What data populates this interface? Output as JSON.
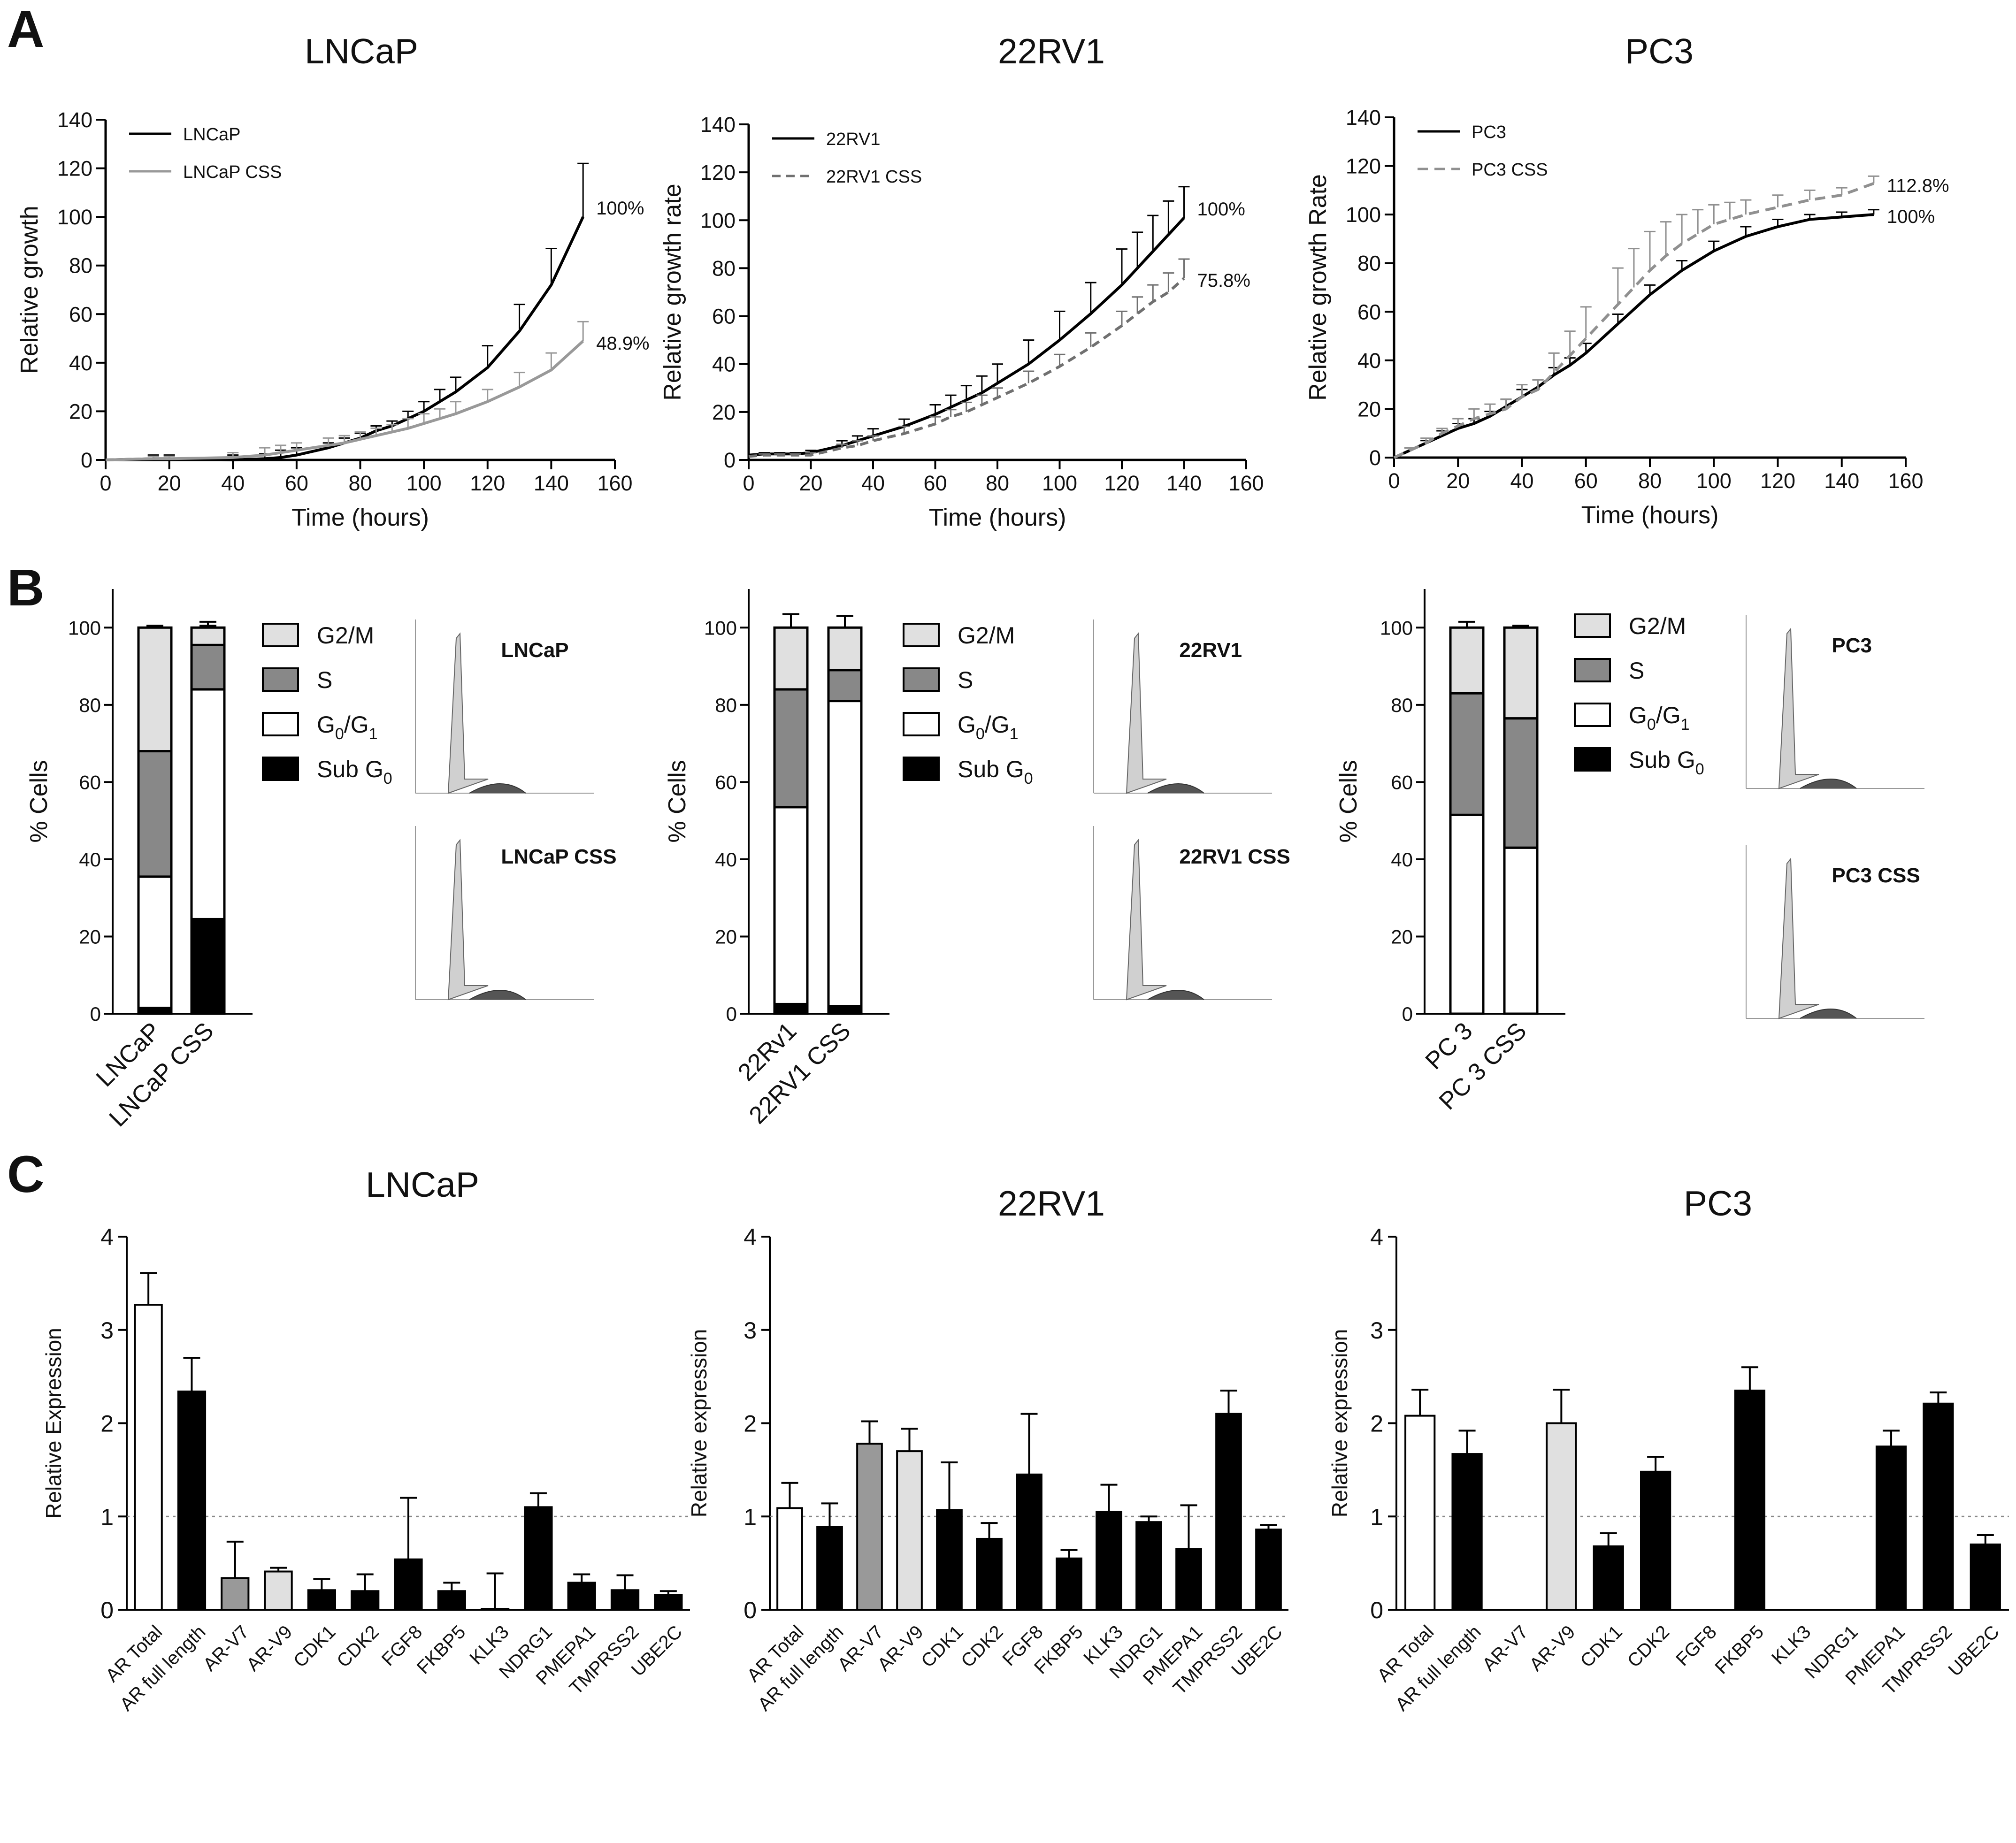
{
  "panel_labels": [
    "A",
    "B",
    "C"
  ],
  "chart_data": [
    {
      "id": "A1",
      "type": "line",
      "title": "LNCaP",
      "xlabel": "Time (hours)",
      "ylabel": "Relative growth",
      "xlim": [
        0,
        160
      ],
      "ylim": [
        0,
        140
      ],
      "xticks": [
        0,
        20,
        40,
        60,
        80,
        100,
        120,
        140,
        160
      ],
      "yticks": [
        0,
        20,
        40,
        60,
        80,
        100,
        120,
        140
      ],
      "series": [
        {
          "name": "LNCaP",
          "color": "#000000",
          "dash": "",
          "x": [
            0,
            15,
            20,
            40,
            50,
            55,
            60,
            70,
            75,
            80,
            85,
            90,
            95,
            100,
            105,
            110,
            120,
            130,
            140,
            150
          ],
          "y": [
            0,
            0.5,
            0.5,
            0,
            0.5,
            1,
            2,
            5,
            7,
            9,
            12,
            14,
            17,
            20,
            24,
            28,
            38,
            53,
            72,
            100
          ],
          "err": [
            0,
            1.5,
            1.5,
            2,
            2,
            3,
            3,
            2,
            2,
            2,
            2,
            2,
            3,
            4,
            5,
            6,
            9,
            11,
            15,
            22
          ],
          "end_label": "100%"
        },
        {
          "name": "LNCaP CSS",
          "color": "#999999",
          "dash": "",
          "x": [
            0,
            15,
            20,
            40,
            50,
            55,
            60,
            70,
            75,
            80,
            85,
            90,
            95,
            100,
            105,
            110,
            120,
            130,
            140,
            150
          ],
          "y": [
            0,
            0.5,
            0.5,
            1,
            2,
            3,
            4,
            6,
            7,
            8.5,
            10,
            11.5,
            13,
            15,
            17,
            19,
            24,
            30,
            37,
            48.9
          ],
          "err": [
            0,
            1,
            1,
            2,
            3,
            3,
            3,
            3,
            3,
            3,
            3,
            3,
            4,
            4,
            4,
            5,
            5,
            6,
            7,
            8
          ],
          "end_label": "48.9%"
        }
      ]
    },
    {
      "id": "A2",
      "type": "line",
      "title": "22RV1",
      "xlabel": "Time (hours)",
      "ylabel": "Relative growth rate",
      "xlim": [
        0,
        160
      ],
      "ylim": [
        0,
        140
      ],
      "xticks": [
        0,
        20,
        40,
        60,
        80,
        100,
        120,
        140,
        160
      ],
      "yticks": [
        0,
        20,
        40,
        60,
        80,
        100,
        120,
        140
      ],
      "series": [
        {
          "name": "22RV1",
          "color": "#000000",
          "dash": "",
          "x": [
            0,
            5,
            10,
            15,
            20,
            30,
            35,
            40,
            50,
            60,
            65,
            70,
            75,
            80,
            90,
            100,
            110,
            120,
            125,
            130,
            135,
            140
          ],
          "y": [
            2,
            2.5,
            2.5,
            2.5,
            3,
            6,
            8,
            10,
            14,
            19,
            22,
            25,
            28,
            32,
            40,
            50,
            61,
            73,
            80,
            87,
            94,
            101
          ],
          "err": [
            0,
            0.5,
            0.5,
            0.5,
            1,
            2,
            2,
            3,
            3,
            4,
            5,
            6,
            7,
            8,
            10,
            12,
            13,
            15,
            15,
            15,
            14,
            13
          ],
          "end_label": "100%"
        },
        {
          "name": "22RV1 CSS",
          "color": "#707070",
          "dash": "18,12",
          "x": [
            0,
            5,
            10,
            15,
            20,
            30,
            35,
            40,
            50,
            60,
            65,
            70,
            75,
            80,
            90,
            100,
            110,
            120,
            125,
            130,
            135,
            140
          ],
          "y": [
            1.5,
            2,
            2,
            2,
            2,
            5,
            6,
            8,
            11,
            15,
            18,
            20,
            23,
            26,
            32,
            39,
            47,
            56,
            61,
            66,
            70,
            75.8
          ],
          "err": [
            0,
            0.5,
            0.5,
            0.5,
            1,
            1.5,
            2,
            2,
            3,
            3,
            3,
            4,
            4,
            4,
            5,
            5,
            6,
            6,
            7,
            7,
            8,
            8
          ],
          "end_label": "75.8%"
        }
      ]
    },
    {
      "id": "A3",
      "type": "line",
      "title": "PC3",
      "xlabel": "Time (hours)",
      "ylabel": "Relative growth Rate",
      "xlim": [
        0,
        160
      ],
      "ylim": [
        0,
        140
      ],
      "xticks": [
        0,
        20,
        40,
        60,
        80,
        100,
        120,
        140,
        160
      ],
      "yticks": [
        0,
        20,
        40,
        60,
        80,
        100,
        120,
        140
      ],
      "series": [
        {
          "name": "PC3",
          "color": "#000000",
          "dash": "",
          "x": [
            0,
            5,
            10,
            15,
            20,
            25,
            30,
            35,
            40,
            45,
            50,
            55,
            60,
            70,
            80,
            90,
            100,
            110,
            120,
            130,
            140,
            150
          ],
          "y": [
            0,
            3,
            6,
            9,
            12,
            14,
            17,
            21,
            25,
            29,
            34,
            38,
            43,
            55,
            67,
            77,
            85,
            91,
            95,
            98,
            99,
            100
          ],
          "err": [
            0,
            1,
            1,
            2,
            2,
            2,
            2,
            3,
            3,
            3,
            3,
            3,
            4,
            4,
            4,
            4,
            4,
            4,
            3,
            2,
            2,
            2
          ],
          "end_label": "100%"
        },
        {
          "name": "PC3 CSS",
          "color": "#909090",
          "dash": "22,14",
          "x": [
            0,
            5,
            10,
            15,
            20,
            25,
            30,
            35,
            40,
            45,
            50,
            55,
            60,
            70,
            75,
            80,
            85,
            90,
            95,
            100,
            105,
            110,
            120,
            130,
            140,
            150
          ],
          "y": [
            0,
            3,
            6,
            10,
            13,
            16,
            18,
            20,
            25,
            28,
            35,
            42,
            49,
            63,
            70,
            77,
            83,
            88,
            92,
            96,
            98,
            100,
            103,
            106,
            108,
            112.8
          ],
          "err": [
            0,
            1,
            2,
            2,
            3,
            4,
            4,
            4,
            5,
            4,
            8,
            10,
            13,
            15,
            16,
            16,
            14,
            12,
            10,
            8,
            7,
            6,
            5,
            4,
            3,
            3
          ],
          "end_label": "112.8%"
        }
      ]
    },
    {
      "id": "B1",
      "type": "bar",
      "stacked": true,
      "ylabel": "% Cells",
      "ylim": [
        0,
        110
      ],
      "yticks": [
        0,
        20,
        40,
        60,
        80,
        100
      ],
      "categories": [
        "LNCaP",
        "LNCaP CSS"
      ],
      "series": [
        {
          "name": "Sub G0",
          "color": "#000000",
          "values": [
            1.5,
            24.5
          ],
          "err": [
            1,
            5
          ]
        },
        {
          "name": "G0/G1",
          "color": "#ffffff",
          "values": [
            34,
            59.5
          ],
          "err": [
            7,
            0
          ]
        },
        {
          "name": "S",
          "color": "#888888",
          "values": [
            32.5,
            11.5
          ],
          "err": [
            7,
            5
          ]
        },
        {
          "name": "G2/M",
          "color": "#e0e0e0",
          "values": [
            32,
            4.5
          ],
          "err": [
            0.5,
            1.5
          ]
        }
      ],
      "legend": [
        "G2/M",
        "S",
        "G0/G1",
        "Sub G0"
      ],
      "histograms": [
        "LNCaP",
        "LNCaP CSS"
      ]
    },
    {
      "id": "B2",
      "type": "bar",
      "stacked": true,
      "ylabel": "% Cells",
      "ylim": [
        0,
        110
      ],
      "yticks": [
        0,
        20,
        40,
        60,
        80,
        100
      ],
      "categories": [
        "22Rv1",
        "22RV1 CSS"
      ],
      "series": [
        {
          "name": "Sub G0",
          "color": "#000000",
          "values": [
            2.5,
            2
          ],
          "err": [
            1,
            1
          ]
        },
        {
          "name": "G0/G1",
          "color": "#ffffff",
          "values": [
            51,
            79
          ],
          "err": [
            5,
            4
          ]
        },
        {
          "name": "S",
          "color": "#888888",
          "values": [
            30.5,
            8
          ],
          "err": [
            1,
            7
          ]
        },
        {
          "name": "G2/M",
          "color": "#e0e0e0",
          "values": [
            16,
            11
          ],
          "err": [
            3.5,
            3
          ]
        }
      ],
      "legend": [
        "G2/M",
        "S",
        "G0/G1",
        "Sub G0"
      ],
      "histograms": [
        "22RV1",
        "22RV1 CSS"
      ]
    },
    {
      "id": "B3",
      "type": "bar",
      "stacked": true,
      "ylabel": "% Cells",
      "ylim": [
        0,
        110
      ],
      "yticks": [
        0,
        20,
        40,
        60,
        80,
        100
      ],
      "categories": [
        "PC 3",
        "PC 3 CSS"
      ],
      "series": [
        {
          "name": "Sub G0",
          "color": "#000000",
          "values": [
            0,
            0
          ],
          "err": [
            0,
            0
          ]
        },
        {
          "name": "G0/G1",
          "color": "#ffffff",
          "values": [
            51.5,
            43
          ],
          "err": [
            1,
            2
          ]
        },
        {
          "name": "S",
          "color": "#888888",
          "values": [
            31.5,
            33.5
          ],
          "err": [
            1,
            2
          ]
        },
        {
          "name": "G2/M",
          "color": "#e0e0e0",
          "values": [
            17,
            23.5
          ],
          "err": [
            1.5,
            0.5
          ]
        }
      ],
      "legend": [
        "G2/M",
        "S",
        "G0/G1",
        "Sub G0"
      ],
      "histograms": [
        "PC3",
        "PC3 CSS"
      ]
    },
    {
      "id": "C1",
      "type": "bar",
      "title": "LNCaP",
      "ylabel": "Relative Expression",
      "ylim": [
        0,
        4
      ],
      "yticks": [
        0,
        1,
        2,
        3,
        4
      ],
      "reference_line": 1,
      "categories": [
        "AR Total",
        "AR full length",
        "AR-V7",
        "AR-V9",
        "CDK1",
        "CDK2",
        "FGF8",
        "FKBP5",
        "KLK3",
        "NDRG1",
        "PMEPA1",
        "TMPRSS2",
        "UBE2C"
      ],
      "values": [
        3.27,
        2.34,
        0.34,
        0.41,
        0.21,
        0.2,
        0.54,
        0.2,
        0.01,
        1.1,
        0.29,
        0.21,
        0.16
      ],
      "err": [
        0.34,
        0.36,
        0.39,
        0.04,
        0.12,
        0.18,
        0.66,
        0.09,
        0.38,
        0.15,
        0.09,
        0.16,
        0.04
      ],
      "colors": [
        "#ffffff",
        "#000000",
        "#999999",
        "#e0e0e0",
        "#000000",
        "#000000",
        "#000000",
        "#000000",
        "#000000",
        "#000000",
        "#000000",
        "#000000",
        "#000000"
      ]
    },
    {
      "id": "C2",
      "type": "bar",
      "title": "22RV1",
      "ylabel": "Relative expression",
      "ylim": [
        0,
        4
      ],
      "yticks": [
        0,
        1,
        2,
        3,
        4
      ],
      "reference_line": 1,
      "categories": [
        "AR Total",
        "AR full length",
        "AR-V7",
        "AR-V9",
        "CDK1",
        "CDK2",
        "FGF8",
        "FKBP5",
        "KLK3",
        "NDRG1",
        "PMEPA1",
        "TMPRSS2",
        "UBE2C"
      ],
      "values": [
        1.09,
        0.89,
        1.78,
        1.7,
        1.07,
        0.76,
        1.45,
        0.55,
        1.05,
        0.94,
        0.65,
        2.1,
        0.86
      ],
      "err": [
        0.27,
        0.25,
        0.24,
        0.24,
        0.51,
        0.17,
        0.65,
        0.09,
        0.29,
        0.06,
        0.47,
        0.25,
        0.05
      ],
      "colors": [
        "#ffffff",
        "#000000",
        "#999999",
        "#e0e0e0",
        "#000000",
        "#000000",
        "#000000",
        "#000000",
        "#000000",
        "#000000",
        "#000000",
        "#000000",
        "#000000"
      ]
    },
    {
      "id": "C3",
      "type": "bar",
      "title": "PC3",
      "ylabel": "Relative expression",
      "ylim": [
        0,
        4
      ],
      "yticks": [
        0,
        1,
        2,
        3,
        4
      ],
      "reference_line": 1,
      "categories": [
        "AR Total",
        "AR full length",
        "AR-V7",
        "AR-V9",
        "CDK1",
        "CDK2",
        "FGF8",
        "FKBP5",
        "KLK3",
        "NDRG1",
        "PMEPA1",
        "TMPRSS2",
        "UBE2C"
      ],
      "values": [
        2.08,
        1.67,
        0,
        2.0,
        0.68,
        1.48,
        0,
        2.35,
        0,
        0,
        1.75,
        2.21,
        0.7
      ],
      "err": [
        0.28,
        0.25,
        0,
        0.36,
        0.14,
        0.16,
        0,
        0.25,
        0,
        0,
        0.17,
        0.12,
        0.1
      ],
      "colors": [
        "#ffffff",
        "#000000",
        "#999999",
        "#e0e0e0",
        "#000000",
        "#000000",
        "#000000",
        "#000000",
        "#000000",
        "#000000",
        "#000000",
        "#000000",
        "#000000"
      ]
    }
  ]
}
